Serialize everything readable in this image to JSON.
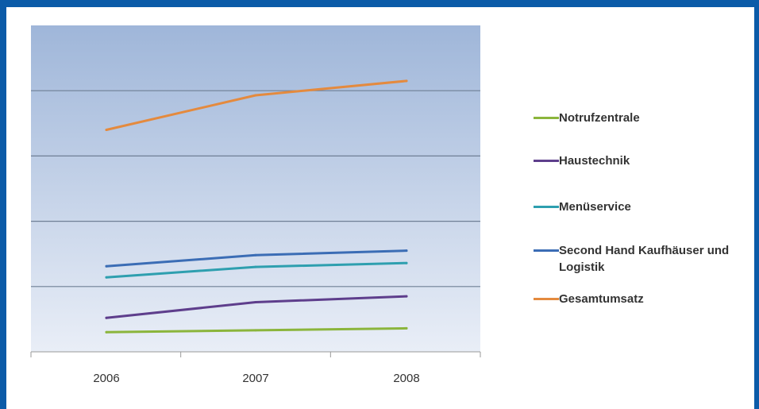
{
  "chart_data": {
    "type": "line",
    "categories": [
      "2006",
      "2007",
      "2008"
    ],
    "ylim": [
      0,
      5
    ],
    "grid": true,
    "legend_position": "right",
    "series": [
      {
        "name": "Notrufzentrale",
        "color": "#8bb53c",
        "values": [
          0.3,
          0.33,
          0.36
        ]
      },
      {
        "name": "Haustechnik",
        "color": "#5e3e8c",
        "values": [
          0.52,
          0.76,
          0.85
        ]
      },
      {
        "name": "Menüservice",
        "color": "#2e9faf",
        "values": [
          1.14,
          1.3,
          1.36
        ]
      },
      {
        "name": "Second Hand Kaufhäuser und Logistik",
        "color": "#3b6db5",
        "values": [
          1.31,
          1.48,
          1.55
        ]
      },
      {
        "name": "Gesamtumsatz",
        "color": "#e48a3e",
        "values": [
          3.4,
          3.93,
          4.15
        ]
      }
    ]
  }
}
